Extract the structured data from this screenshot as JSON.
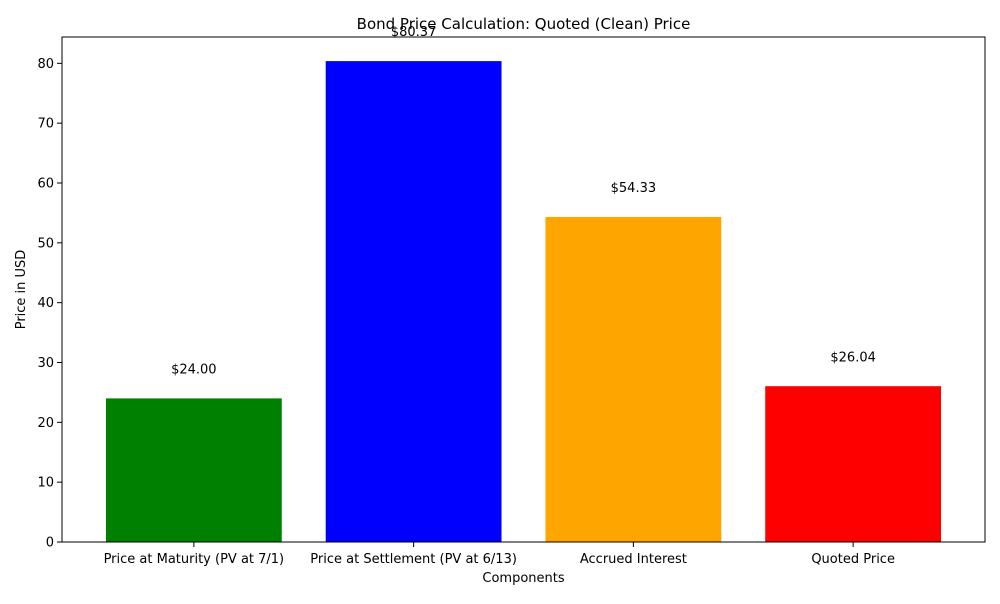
{
  "chart_data": {
    "type": "bar",
    "title": "Bond Price Calculation: Quoted (Clean) Price",
    "xlabel": "Components",
    "ylabel": "Price in USD",
    "categories": [
      "Price at Maturity (PV at 7/1)",
      "Price at Settlement (PV at 6/13)",
      "Accrued Interest",
      "Quoted Price"
    ],
    "values": [
      24.0,
      80.37,
      54.33,
      26.04
    ],
    "data_labels": [
      "$24.00",
      "$80.37",
      "$54.33",
      "$26.04"
    ],
    "colors": [
      "#008000",
      "#0000ff",
      "#ffa500",
      "#ff0000"
    ],
    "ylim": [
      0,
      84.4
    ],
    "yticks": [
      0,
      10,
      20,
      30,
      40,
      50,
      60,
      70,
      80
    ],
    "grid": false,
    "legend": "none"
  }
}
